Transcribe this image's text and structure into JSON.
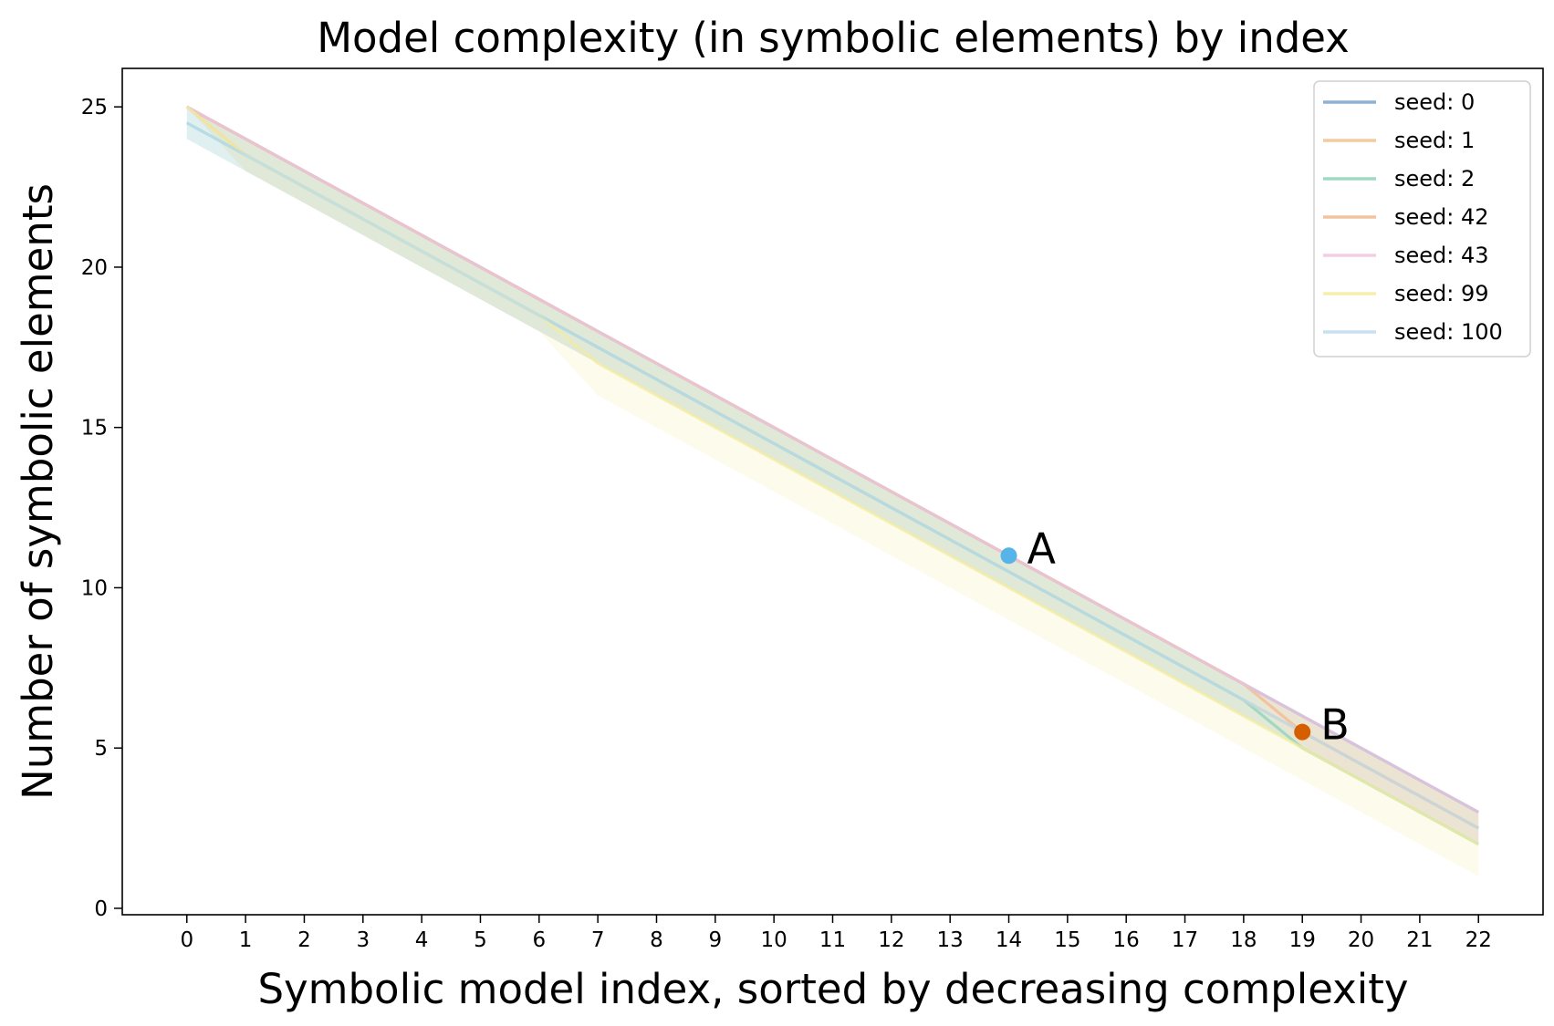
{
  "chart_data": {
    "type": "line",
    "title": "Model complexity (in symbolic elements) by index",
    "xlabel": "Symbolic model index, sorted by decreasing complexity",
    "ylabel": "Number of symbolic elements",
    "x": [
      0,
      1,
      2,
      3,
      4,
      5,
      6,
      7,
      8,
      9,
      10,
      11,
      12,
      13,
      14,
      15,
      16,
      17,
      18,
      19,
      20,
      21,
      22
    ],
    "x_ticks": [
      "0",
      "1",
      "2",
      "3",
      "4",
      "5",
      "6",
      "7",
      "8",
      "9",
      "10",
      "11",
      "12",
      "13",
      "14",
      "15",
      "16",
      "17",
      "18",
      "19",
      "20",
      "21",
      "22"
    ],
    "y_ticks": [
      "0",
      "5",
      "10",
      "15",
      "20",
      "25"
    ],
    "xlim": [
      -1.1,
      23.1
    ],
    "ylim": [
      -0.2,
      26.2
    ],
    "grid": false,
    "legend_position": "top-right",
    "series": [
      {
        "name": "seed: 0",
        "color": "#7ba3cc",
        "values": [
          25,
          24,
          23,
          22,
          21,
          20,
          19,
          18,
          17,
          16,
          15,
          14,
          13,
          12,
          11,
          10,
          9,
          8,
          7,
          6,
          5,
          4,
          3
        ],
        "band_low": [
          25,
          24,
          23,
          22,
          21,
          20,
          19,
          18,
          17,
          16,
          15,
          14,
          13,
          12,
          11,
          10,
          9,
          8,
          7,
          6,
          5,
          4,
          3
        ],
        "band_high": [
          25,
          24,
          23,
          22,
          21,
          20,
          19,
          18,
          17,
          16,
          15,
          14,
          13,
          12,
          11,
          10,
          9,
          8,
          7,
          6,
          5,
          4,
          3
        ]
      },
      {
        "name": "seed: 1",
        "color": "#eec38f",
        "values": [
          25,
          23.5,
          22.5,
          21.5,
          20.5,
          19.5,
          18.5,
          17.5,
          16.5,
          15.5,
          14.5,
          13.5,
          12.5,
          11.5,
          10.5,
          9.5,
          8.5,
          7.5,
          6.5,
          5.5,
          4.5,
          3.5,
          2.5
        ],
        "band_low": [
          25,
          23,
          22,
          21,
          20,
          19,
          18,
          17,
          16,
          15,
          14,
          13,
          12,
          11,
          10,
          9,
          8,
          7,
          6,
          5,
          4,
          3,
          2
        ],
        "band_high": [
          25,
          24,
          23,
          22,
          21,
          20,
          19,
          18,
          17,
          16,
          15,
          14,
          13,
          12,
          11,
          10,
          9,
          8,
          7,
          6,
          5,
          4,
          3
        ]
      },
      {
        "name": "seed: 2",
        "color": "#8fd3b8",
        "values": [
          24.5,
          23.5,
          22.5,
          21.5,
          20.5,
          19.5,
          18.5,
          17.5,
          16.5,
          15.5,
          14.5,
          13.5,
          12.5,
          11.5,
          10.5,
          9.5,
          8.5,
          7.5,
          6.5,
          5,
          4,
          3,
          2
        ],
        "band_low": [
          24,
          23,
          22,
          21,
          20,
          19,
          18,
          17,
          16,
          15,
          14,
          13,
          12,
          11,
          10,
          9,
          8,
          7,
          6,
          5,
          4,
          3,
          2
        ],
        "band_high": [
          25,
          24,
          23,
          22,
          21,
          20,
          19,
          18,
          17,
          16,
          15,
          14,
          13,
          12,
          11,
          10,
          9,
          8,
          7,
          5,
          4,
          3,
          2
        ]
      },
      {
        "name": "seed: 42",
        "color": "#f1b98e",
        "values": [
          25,
          24,
          23,
          22,
          21,
          20,
          19,
          18,
          17,
          16,
          15,
          14,
          13,
          12,
          11,
          10,
          9,
          8,
          7,
          5.5,
          4.5,
          3.5,
          2.5
        ],
        "band_low": [
          25,
          24,
          23,
          22,
          21,
          20,
          19,
          18,
          17,
          16,
          15,
          14,
          13,
          12,
          11,
          10,
          9,
          8,
          7,
          5,
          4,
          3,
          2
        ],
        "band_high": [
          25,
          24,
          23,
          22,
          21,
          20,
          19,
          18,
          17,
          16,
          15,
          14,
          13,
          12,
          11,
          10,
          9,
          8,
          7,
          6,
          5,
          4,
          3
        ]
      },
      {
        "name": "seed: 43",
        "color": "#f0c6df",
        "values": [
          25,
          24,
          23,
          22,
          21,
          20,
          19,
          18,
          17,
          16,
          15,
          14,
          13,
          12,
          11,
          10,
          9,
          8,
          7,
          6,
          5,
          4,
          3
        ],
        "band_low": [
          25,
          24,
          23,
          22,
          21,
          20,
          19,
          18,
          17,
          16,
          15,
          14,
          13,
          12,
          11,
          10,
          9,
          8,
          7,
          6,
          5,
          4,
          3
        ],
        "band_high": [
          25,
          24,
          23,
          22,
          21,
          20,
          19,
          18,
          17,
          16,
          15,
          14,
          13,
          12,
          11,
          10,
          9,
          8,
          7,
          6,
          5,
          4,
          3
        ]
      },
      {
        "name": "seed: 99",
        "color": "#f3eca0",
        "values": [
          25,
          23.5,
          22.5,
          21.5,
          20.5,
          19.5,
          18.5,
          17,
          16,
          15,
          14,
          13,
          12,
          11,
          10,
          9,
          8,
          7,
          6,
          5,
          4,
          3,
          2
        ],
        "band_low": [
          25,
          23,
          22,
          21,
          20,
          19,
          18,
          16,
          15,
          14,
          13,
          12,
          11,
          10,
          9,
          8,
          7,
          6,
          5,
          4,
          3,
          2,
          1
        ],
        "band_high": [
          25,
          24,
          23,
          22,
          21,
          20,
          19,
          18,
          17,
          16,
          15,
          14,
          13,
          12,
          11,
          10,
          9,
          8,
          7,
          6,
          5,
          4,
          3
        ]
      },
      {
        "name": "seed: 100",
        "color": "#bcdcf0",
        "values": [
          24.5,
          23.5,
          22.5,
          21.5,
          20.5,
          19.5,
          18.5,
          17.5,
          16.5,
          15.5,
          14.5,
          13.5,
          12.5,
          11.5,
          10.5,
          9.5,
          8.5,
          7.5,
          6.5,
          5.5,
          4.5,
          3.5,
          2.5
        ],
        "band_low": [
          24,
          23,
          22,
          21,
          20,
          19,
          18,
          17,
          16,
          15,
          14,
          13,
          12,
          11,
          10,
          9,
          8,
          7,
          6,
          5,
          4,
          3,
          2
        ],
        "band_high": [
          25,
          24,
          23,
          22,
          21,
          20,
          19,
          18,
          17,
          16,
          15,
          14,
          13,
          12,
          11,
          10,
          9,
          8,
          7,
          6,
          5,
          4,
          3
        ]
      }
    ],
    "annotations": [
      {
        "label": "A",
        "x": 14,
        "y": 11,
        "color": "#56b4e9"
      },
      {
        "label": "B",
        "x": 19,
        "y": 5.5,
        "color": "#d55e00"
      }
    ]
  }
}
